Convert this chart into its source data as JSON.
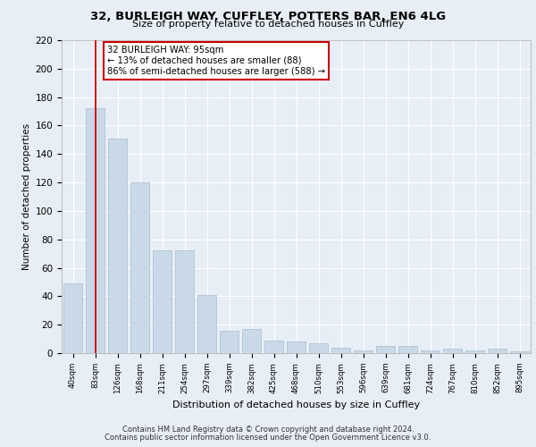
{
  "title_line1": "32, BURLEIGH WAY, CUFFLEY, POTTERS BAR, EN6 4LG",
  "title_line2": "Size of property relative to detached houses in Cuffley",
  "xlabel": "Distribution of detached houses by size in Cuffley",
  "ylabel": "Number of detached properties",
  "footer_line1": "Contains HM Land Registry data © Crown copyright and database right 2024.",
  "footer_line2": "Contains public sector information licensed under the Open Government Licence v3.0.",
  "categories": [
    "40sqm",
    "83sqm",
    "126sqm",
    "168sqm",
    "211sqm",
    "254sqm",
    "297sqm",
    "339sqm",
    "382sqm",
    "425sqm",
    "468sqm",
    "510sqm",
    "553sqm",
    "596sqm",
    "639sqm",
    "681sqm",
    "724sqm",
    "767sqm",
    "810sqm",
    "852sqm",
    "895sqm"
  ],
  "values": [
    49,
    172,
    151,
    120,
    72,
    72,
    41,
    16,
    17,
    9,
    8,
    7,
    4,
    2,
    5,
    5,
    2,
    3,
    2,
    3,
    1
  ],
  "bar_color": "#c9d9e8",
  "bar_edge_color": "#a8bfd0",
  "vline_x": 1.0,
  "vline_color": "#cc0000",
  "annotation_line1": "32 BURLEIGH WAY: 95sqm",
  "annotation_line2": "← 13% of detached houses are smaller (88)",
  "annotation_line3": "86% of semi-detached houses are larger (588) →",
  "annotation_box_color": "#ffffff",
  "annotation_box_edge": "#cc0000",
  "ylim": [
    0,
    220
  ],
  "yticks": [
    0,
    20,
    40,
    60,
    80,
    100,
    120,
    140,
    160,
    180,
    200,
    220
  ],
  "background_color": "#e8eef5",
  "plot_bg_color": "#e8eef5",
  "grid_color": "#ffffff"
}
